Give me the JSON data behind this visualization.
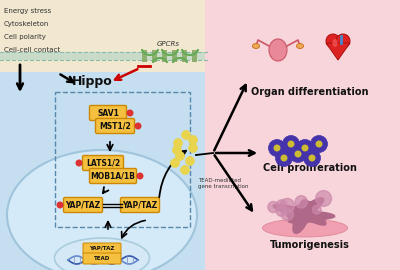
{
  "left_bg_color": "#c5dff0",
  "right_bg_color": "#f8d5da",
  "top_left_bg_color": "#f2e8d0",
  "box_fill": "#f5c040",
  "box_edge": "#cc8800",
  "dashed_color": "#5588aa",
  "left_labels": [
    "Energy stress",
    "Cytoskeleton",
    "Cell polarity",
    "Cell-cell contact"
  ],
  "gpcr_label": "GPCRs",
  "hippo_label": "Hippo",
  "box_labels": [
    "SAV1",
    "MST1/2",
    "LATS1/2",
    "MOB1A/1B",
    "YAP/TAZ",
    "YAP/TAZ"
  ],
  "nucleus_box1": "YAP/TAZ",
  "nucleus_box2": "TEAD",
  "tead_label": "TEAD-mediated\ngene transcription",
  "right_labels": [
    "Organ differentiation",
    "Cell proliferation",
    "Tumorigenesis"
  ],
  "membrane_top_color": "#7ab8a0",
  "membrane_line_color": "#6aa898",
  "cell_bg": "#cce3f2",
  "nucleus_bg": "#d5e8f5",
  "nucleus_edge": "#aaccdd",
  "dot_color": "#e8d44d",
  "dot_edge": "#c0aa20",
  "phospho_color": "#dd3333",
  "cell_edge": "#a0c4dc",
  "dna_color1": "#3355aa",
  "dna_color2": "#6688cc"
}
